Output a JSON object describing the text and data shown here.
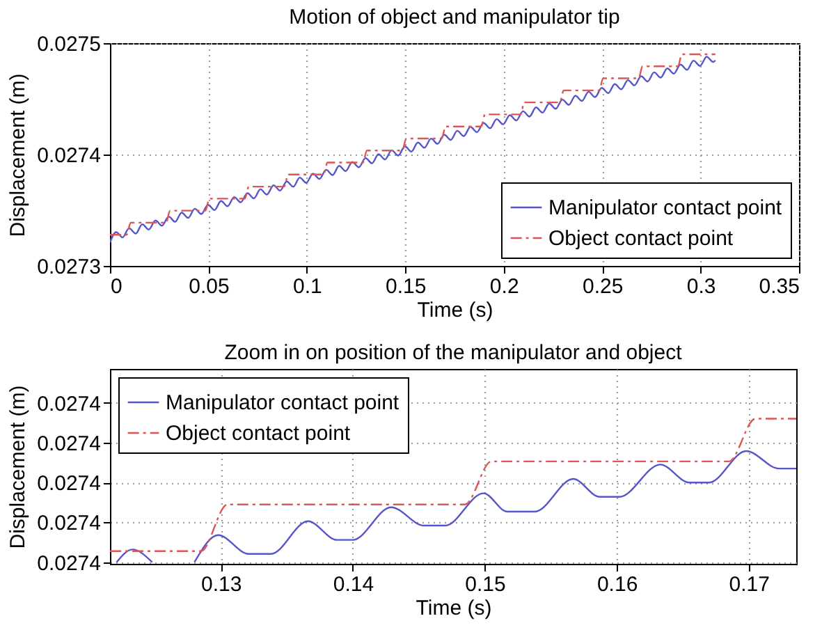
{
  "chart_data": [
    {
      "type": "line",
      "title": "Motion of object and manipulator tip",
      "xlabel": "Time (s)",
      "ylabel": "Displacement (m)",
      "xlim": [
        0,
        0.35
      ],
      "xticks": [
        0,
        0.05,
        0.1,
        0.15,
        0.2,
        0.25,
        0.3,
        0.35
      ],
      "ylim": [
        0.0273,
        0.0275
      ],
      "yticks": [
        0.0273,
        0.0274,
        0.0275
      ],
      "grid": true,
      "legend": "bottom right",
      "series": [
        {
          "name": "Manipulator contact point",
          "color": "#5555cc",
          "line_style": "solid",
          "x": [
            0,
            0.0031,
            0.0064,
            0.0097,
            0.0131,
            0.0164,
            0.0197,
            0.0231,
            0.0264,
            0.0298,
            0.0331,
            0.0364,
            0.0397,
            0.0431,
            0.0464,
            0.0498,
            0.0531,
            0.0564,
            0.0597,
            0.0631,
            0.0664,
            0.0698,
            0.0731,
            0.0764,
            0.0797,
            0.0831,
            0.0864,
            0.0898,
            0.0931,
            0.0964,
            0.0997,
            0.1031,
            0.1064,
            0.1098,
            0.1131,
            0.1164,
            0.1197,
            0.1231,
            0.1264,
            0.1298,
            0.1331,
            0.1364,
            0.1397,
            0.1431,
            0.1464,
            0.1498,
            0.1531,
            0.1564,
            0.1597,
            0.1631,
            0.1664,
            0.1698,
            0.1731,
            0.1764,
            0.1797,
            0.1831,
            0.1864,
            0.1898,
            0.1931,
            0.1964,
            0.1997,
            0.2031,
            0.2064,
            0.2098,
            0.2131,
            0.2164,
            0.2197,
            0.2231,
            0.2264,
            0.2298,
            0.2331,
            0.2364,
            0.2397,
            0.2431,
            0.2464,
            0.2498,
            0.2531,
            0.2564,
            0.2597,
            0.2631,
            0.2664,
            0.2698,
            0.2731,
            0.2764,
            0.2797,
            0.2831,
            0.2864,
            0.2898,
            0.2931,
            0.2964,
            0.2997,
            0.3031,
            0.3064,
            0.3075
          ],
          "values": [
            0.027321,
            0.0273303,
            0.0273256,
            0.0273338,
            0.0273291,
            0.0273373,
            0.0273326,
            0.0273408,
            0.0273361,
            0.0273443,
            0.0273396,
            0.0273478,
            0.0273431,
            0.0273513,
            0.0273466,
            0.0273548,
            0.0273501,
            0.0273583,
            0.0273536,
            0.0273618,
            0.0273571,
            0.0273653,
            0.0273606,
            0.0273688,
            0.0273641,
            0.0273723,
            0.0273676,
            0.0273758,
            0.0273711,
            0.0273793,
            0.0273746,
            0.0273828,
            0.0273781,
            0.0273863,
            0.0273816,
            0.0273898,
            0.0273851,
            0.0273933,
            0.0273886,
            0.0273968,
            0.0273921,
            0.0274003,
            0.0273956,
            0.0274038,
            0.0273991,
            0.0274073,
            0.0274026,
            0.0274108,
            0.0274061,
            0.0274143,
            0.0274096,
            0.0274178,
            0.0274131,
            0.0274213,
            0.0274166,
            0.0274248,
            0.0274201,
            0.0274283,
            0.0274236,
            0.0274318,
            0.0274271,
            0.0274353,
            0.0274306,
            0.0274388,
            0.0274341,
            0.0274423,
            0.0274376,
            0.0274458,
            0.0274411,
            0.0274493,
            0.0274446,
            0.0274528,
            0.0274481,
            0.0274563,
            0.0274516,
            0.0274598,
            0.0274551,
            0.0274633,
            0.0274586,
            0.0274668,
            0.0274621,
            0.0274703,
            0.0274656,
            0.0274738,
            0.0274691,
            0.0274773,
            0.0274726,
            0.0274808,
            0.0274761,
            0.0274843,
            0.0274796,
            0.0274878,
            0.0274831,
            0.0274845
          ]
        },
        {
          "name": "Object contact point",
          "color": "#dd5555",
          "line_style": "dashdot",
          "x": [
            0,
            0.0085,
            0.0105,
            0.0285,
            0.0305,
            0.0485,
            0.0505,
            0.0685,
            0.0705,
            0.0885,
            0.0905,
            0.1085,
            0.1105,
            0.1285,
            0.1305,
            0.1485,
            0.1505,
            0.1685,
            0.1705,
            0.1885,
            0.1905,
            0.2085,
            0.2105,
            0.2285,
            0.2305,
            0.2485,
            0.2505,
            0.2685,
            0.2705,
            0.2885,
            0.2905,
            0.3075
          ],
          "values": [
            0.027328,
            0.027328,
            0.0273388,
            0.0273388,
            0.0273496,
            0.0273496,
            0.0273604,
            0.0273604,
            0.0273712,
            0.0273712,
            0.027382,
            0.027382,
            0.0273928,
            0.0273928,
            0.0274036,
            0.0274036,
            0.0274144,
            0.0274144,
            0.0274252,
            0.0274252,
            0.027436,
            0.027436,
            0.0274468,
            0.0274468,
            0.0274576,
            0.0274576,
            0.0274684,
            0.0274684,
            0.0274792,
            0.0274792,
            0.02749,
            0.02749
          ]
        }
      ]
    },
    {
      "type": "line",
      "title": "Zoom in on position of the manipulator and object",
      "xlabel": "Time (s)",
      "ylabel": "Displacement (m)",
      "xlim": [
        0.1216,
        0.1736
      ],
      "xticks": [
        0.13,
        0.14,
        0.15,
        0.16,
        0.17
      ],
      "ylim": [
        0.0273896,
        0.0274385
      ],
      "yticks": [
        {
          "value": 0.02739,
          "label": "0.0274"
        },
        {
          "value": 0.0274,
          "label": "0.0274"
        },
        {
          "value": 0.02741,
          "label": "0.0274"
        },
        {
          "value": 0.02742,
          "label": "0.0274"
        },
        {
          "value": 0.02743,
          "label": "0.0274"
        }
      ],
      "grid": true,
      "legend": "top left",
      "series": [
        {
          "name": "Manipulator contact point",
          "color": "#5555cc",
          "line_style": "solid",
          "x": [
            0.1221,
            0.1233,
            0.1248,
            0.1263,
            0.128,
            0.1298,
            0.1321,
            0.1338,
            0.1366,
            0.1388,
            0.14,
            0.1429,
            0.1454,
            0.147,
            0.1499,
            0.1517,
            0.1538,
            0.1567,
            0.1587,
            0.1602,
            0.1633,
            0.1655,
            0.167,
            0.1698,
            0.1723,
            0.1736
          ],
          "values": [
            0.02739,
            0.0273932,
            0.02739,
            null,
            0.02739,
            0.0273968,
            0.0273921,
            0.0273921,
            0.0274003,
            0.0273956,
            0.0273956,
            0.0274038,
            0.0273992,
            0.0273992,
            0.0274073,
            0.0274027,
            0.0274027,
            0.0274109,
            0.0274064,
            0.0274064,
            0.0274145,
            0.02741,
            0.02741,
            0.0274179,
            0.0274135,
            0.0274135
          ]
        },
        {
          "name": "Object contact point",
          "color": "#dd5555",
          "line_style": "dashdot",
          "x": [
            0.1216,
            0.1285,
            0.1305,
            0.1485,
            0.1505,
            0.1685,
            0.1705,
            0.1736
          ],
          "values": [
            0.0273928,
            0.0273928,
            0.0274045,
            0.0274045,
            0.0274153,
            0.0274153,
            0.027426,
            0.027426
          ]
        }
      ]
    }
  ]
}
